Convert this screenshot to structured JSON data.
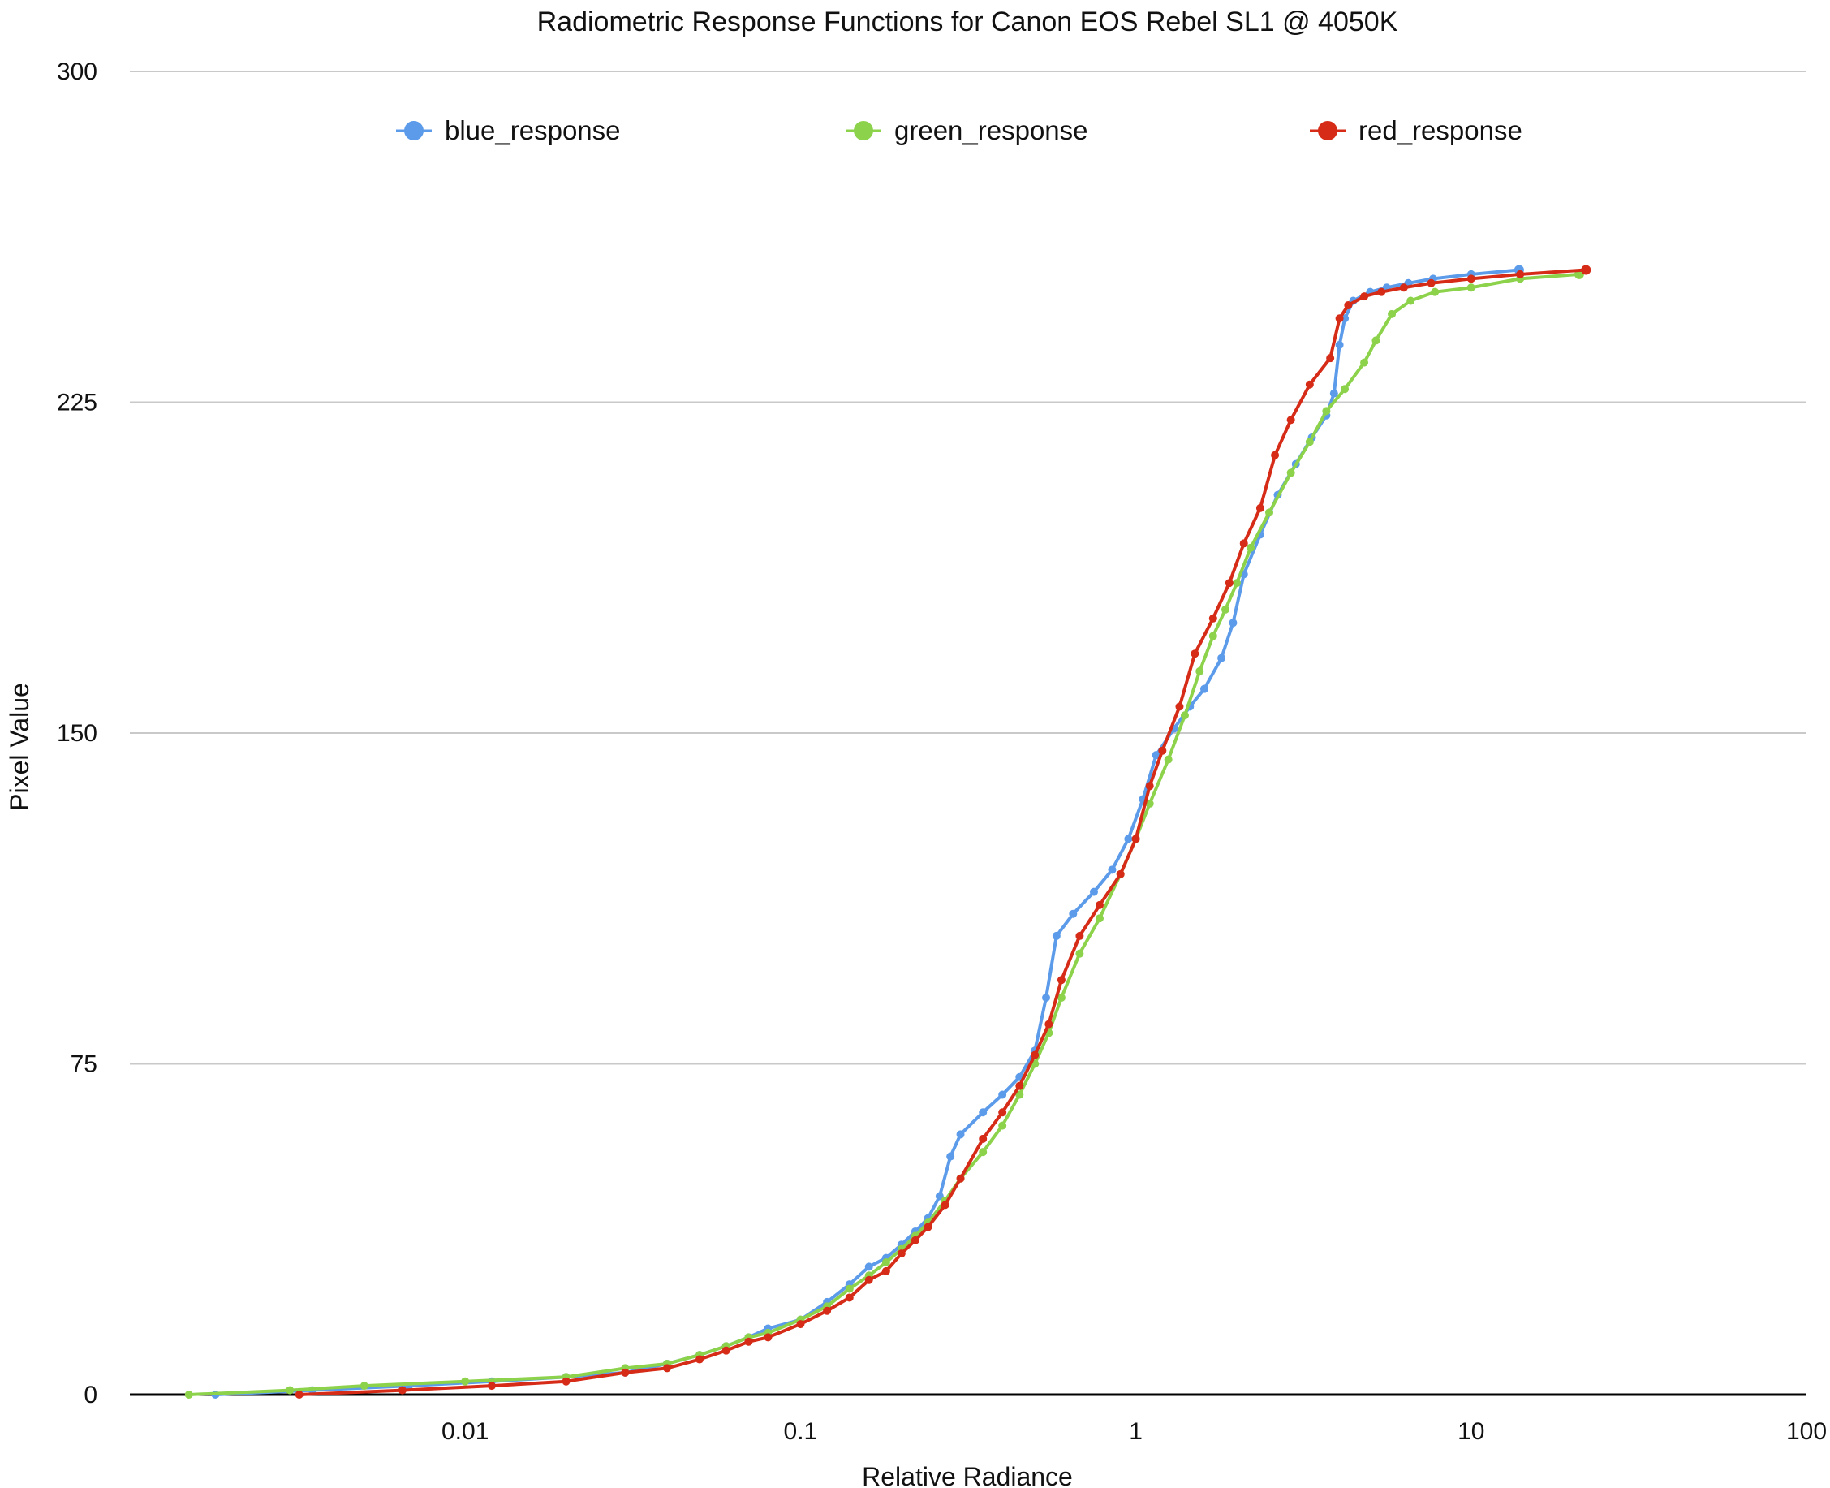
{
  "chart_data": {
    "type": "scatter",
    "title": "Radiometric Response Functions for Canon EOS Rebel SL1 @ 4050K",
    "xlabel": "Relative Radiance",
    "ylabel": "Pixel Value",
    "x_scale": "log",
    "xlim": [
      0.001,
      100
    ],
    "ylim": [
      0,
      300
    ],
    "x_ticks": [
      0.01,
      0.1,
      1,
      10,
      100
    ],
    "x_tick_labels": [
      "0.01",
      "0.1",
      "1",
      "10",
      "100"
    ],
    "y_ticks": [
      0,
      75,
      150,
      225,
      300
    ],
    "y_tick_labels": [
      "0",
      "75",
      "150",
      "225",
      "300"
    ],
    "grid": {
      "x": false,
      "y": true
    },
    "legend": {
      "position": "top",
      "order": [
        "blue_response",
        "green_response",
        "red_response"
      ]
    },
    "series": [
      {
        "name": "blue_response",
        "color": "#5b9bea",
        "points": [
          [
            0.0018,
            0
          ],
          [
            0.0035,
            1
          ],
          [
            0.0068,
            2
          ],
          [
            0.012,
            3
          ],
          [
            0.02,
            4
          ],
          [
            0.03,
            5
          ],
          [
            0.04,
            7
          ],
          [
            0.05,
            9
          ],
          [
            0.06,
            11
          ],
          [
            0.07,
            13
          ],
          [
            0.08,
            15
          ],
          [
            0.1,
            17
          ],
          [
            0.12,
            21
          ],
          [
            0.14,
            25
          ],
          [
            0.16,
            29
          ],
          [
            0.18,
            31
          ],
          [
            0.2,
            34
          ],
          [
            0.22,
            37
          ],
          [
            0.24,
            40
          ],
          [
            0.26,
            45
          ],
          [
            0.28,
            54
          ],
          [
            0.3,
            59
          ],
          [
            0.35,
            64
          ],
          [
            0.4,
            68
          ],
          [
            0.45,
            72
          ],
          [
            0.5,
            78
          ],
          [
            0.54,
            90
          ],
          [
            0.58,
            104
          ],
          [
            0.65,
            109
          ],
          [
            0.75,
            114
          ],
          [
            0.85,
            119
          ],
          [
            0.95,
            126
          ],
          [
            1.05,
            135
          ],
          [
            1.15,
            145
          ],
          [
            1.3,
            151
          ],
          [
            1.45,
            156
          ],
          [
            1.6,
            160
          ],
          [
            1.8,
            167
          ],
          [
            1.95,
            175
          ],
          [
            2.1,
            186
          ],
          [
            2.35,
            195
          ],
          [
            2.65,
            204
          ],
          [
            3,
            211
          ],
          [
            3.35,
            217
          ],
          [
            3.7,
            222
          ],
          [
            3.9,
            227
          ],
          [
            4.05,
            238
          ],
          [
            4.2,
            244
          ],
          [
            4.45,
            248
          ],
          [
            5,
            250
          ],
          [
            5.6,
            251
          ],
          [
            6.5,
            252
          ],
          [
            7.7,
            253
          ],
          [
            10,
            254
          ],
          [
            13.9,
            255
          ]
        ]
      },
      {
        "name": "green_response",
        "color": "#8cd24b",
        "points": [
          [
            0.0015,
            0
          ],
          [
            0.003,
            1
          ],
          [
            0.005,
            2
          ],
          [
            0.01,
            3
          ],
          [
            0.02,
            4
          ],
          [
            0.03,
            6
          ],
          [
            0.04,
            7
          ],
          [
            0.05,
            9
          ],
          [
            0.06,
            11
          ],
          [
            0.07,
            13
          ],
          [
            0.08,
            14
          ],
          [
            0.1,
            17
          ],
          [
            0.12,
            20
          ],
          [
            0.14,
            24
          ],
          [
            0.16,
            27
          ],
          [
            0.18,
            30
          ],
          [
            0.2,
            33
          ],
          [
            0.22,
            36
          ],
          [
            0.24,
            39
          ],
          [
            0.27,
            44
          ],
          [
            0.3,
            49
          ],
          [
            0.35,
            55
          ],
          [
            0.4,
            61
          ],
          [
            0.45,
            68
          ],
          [
            0.5,
            75
          ],
          [
            0.55,
            82
          ],
          [
            0.6,
            90
          ],
          [
            0.68,
            100
          ],
          [
            0.78,
            108
          ],
          [
            0.9,
            118
          ],
          [
            1,
            126
          ],
          [
            1.1,
            134
          ],
          [
            1.25,
            144
          ],
          [
            1.4,
            154
          ],
          [
            1.55,
            164
          ],
          [
            1.7,
            172
          ],
          [
            1.85,
            178
          ],
          [
            2,
            184
          ],
          [
            2.2,
            192
          ],
          [
            2.5,
            200
          ],
          [
            2.9,
            209
          ],
          [
            3.3,
            216
          ],
          [
            3.7,
            223
          ],
          [
            4.2,
            228
          ],
          [
            4.8,
            234
          ],
          [
            5.2,
            239
          ],
          [
            5.8,
            245
          ],
          [
            6.6,
            248
          ],
          [
            7.8,
            250
          ],
          [
            10,
            251
          ],
          [
            14,
            253
          ],
          [
            21,
            254
          ]
        ]
      },
      {
        "name": "red_response",
        "color": "#d52b17",
        "points": [
          [
            0.0032,
            0
          ],
          [
            0.0065,
            1
          ],
          [
            0.012,
            2
          ],
          [
            0.02,
            3
          ],
          [
            0.03,
            5
          ],
          [
            0.04,
            6
          ],
          [
            0.05,
            8
          ],
          [
            0.06,
            10
          ],
          [
            0.07,
            12
          ],
          [
            0.08,
            13
          ],
          [
            0.1,
            16
          ],
          [
            0.12,
            19
          ],
          [
            0.14,
            22
          ],
          [
            0.16,
            26
          ],
          [
            0.18,
            28
          ],
          [
            0.2,
            32
          ],
          [
            0.22,
            35
          ],
          [
            0.24,
            38
          ],
          [
            0.27,
            43
          ],
          [
            0.3,
            49
          ],
          [
            0.35,
            58
          ],
          [
            0.4,
            64
          ],
          [
            0.45,
            70
          ],
          [
            0.5,
            77
          ],
          [
            0.55,
            84
          ],
          [
            0.6,
            94
          ],
          [
            0.68,
            104
          ],
          [
            0.78,
            111
          ],
          [
            0.9,
            118
          ],
          [
            1,
            126
          ],
          [
            1.1,
            138
          ],
          [
            1.2,
            146
          ],
          [
            1.35,
            156
          ],
          [
            1.5,
            168
          ],
          [
            1.7,
            176
          ],
          [
            1.9,
            184
          ],
          [
            2.1,
            193
          ],
          [
            2.35,
            201
          ],
          [
            2.6,
            213
          ],
          [
            2.9,
            221
          ],
          [
            3.3,
            229
          ],
          [
            3.8,
            235
          ],
          [
            4.05,
            244
          ],
          [
            4.3,
            247
          ],
          [
            4.8,
            249
          ],
          [
            5.4,
            250
          ],
          [
            6.3,
            251
          ],
          [
            7.6,
            252
          ],
          [
            10,
            253
          ],
          [
            14,
            254
          ],
          [
            22,
            255
          ]
        ]
      }
    ]
  }
}
